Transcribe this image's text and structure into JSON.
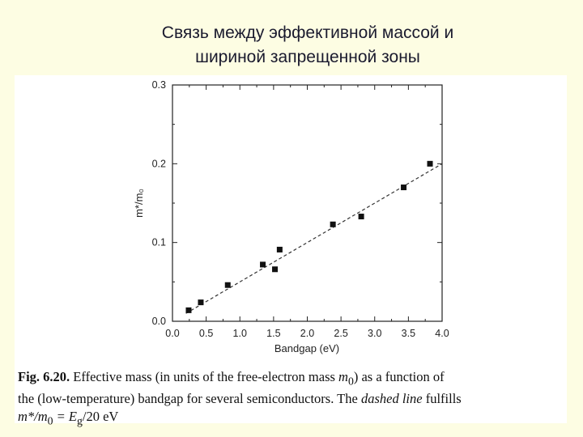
{
  "slide": {
    "title_line1": "Связь между эффективной массой и",
    "title_line2": "шириной запрещенной зоны"
  },
  "caption": {
    "fig_label": "Fig. 6.20.",
    "line1_text": " Effective mass (in units of the free-electron mass ",
    "line1_var": "m",
    "line1_sub": "0",
    "line1_end": ") as a function of",
    "line2_start": "the (low-temperature) bandgap for several semiconductors. The ",
    "line2_italic": "dashed line",
    "line2_end": " fulfills",
    "line3_text": "m*/m",
    "line3_sub": "0",
    "line3_mid": " = E",
    "line3_sub2": "g",
    "line3_end": "/20 eV"
  },
  "chart_data": {
    "type": "scatter",
    "xlabel": "Bandgap (eV)",
    "ylabel": "m*/m₀",
    "xlim": [
      0.0,
      4.0
    ],
    "ylim": [
      0.0,
      0.3
    ],
    "xticks": [
      "0.0",
      "0.5",
      "1.0",
      "1.5",
      "2.0",
      "2.5",
      "3.0",
      "3.5",
      "4.0"
    ],
    "yticks": [
      "0.0",
      "0.1",
      "0.2",
      "0.3"
    ],
    "series": [
      {
        "x": [
          0.24,
          0.42,
          0.82,
          1.34,
          1.52,
          1.59,
          2.38,
          2.8,
          3.43,
          3.82
        ],
        "y": [
          0.014,
          0.024,
          0.046,
          0.072,
          0.066,
          0.091,
          0.123,
          0.133,
          0.17,
          0.2
        ]
      }
    ],
    "fit_line": {
      "style": "dashed",
      "x": [
        0.2,
        4.0
      ],
      "y": [
        0.01,
        0.2
      ]
    },
    "grid": false
  }
}
